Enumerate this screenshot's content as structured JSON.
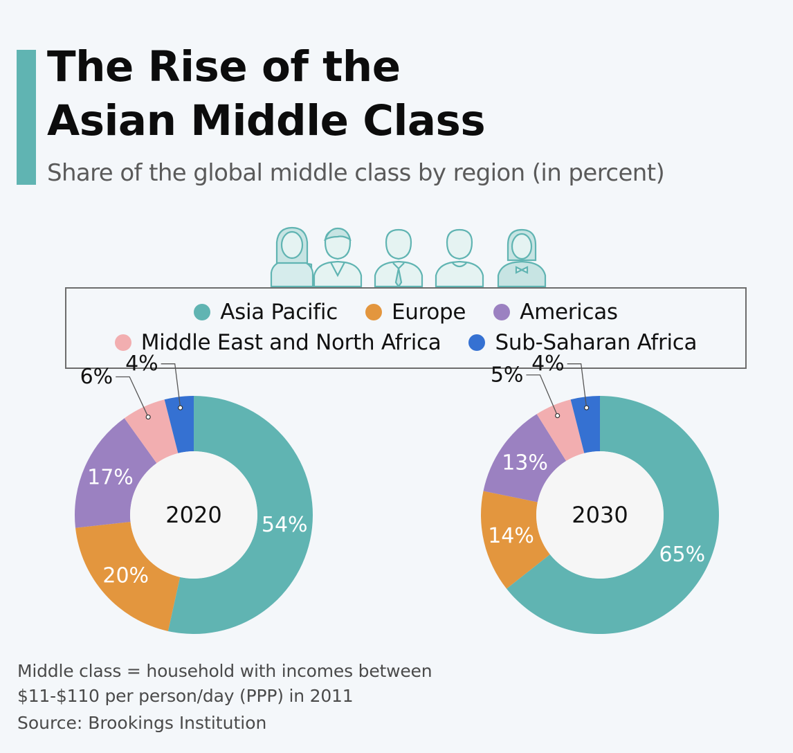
{
  "header": {
    "title_line1": "The Rise of the",
    "title_line2": "Asian Middle Class",
    "subtitle": "Share of the global middle class by region (in percent)"
  },
  "legend": {
    "items": [
      {
        "label": "Asia Pacific",
        "color": "#60b4b2"
      },
      {
        "label": "Europe",
        "color": "#e3963e"
      },
      {
        "label": "Americas",
        "color": "#9b81c1"
      },
      {
        "label": "Middle East and North Africa",
        "color": "#f2aeb0"
      },
      {
        "label": "Sub-Saharan Africa",
        "color": "#3571d2"
      }
    ]
  },
  "footer": {
    "note_line1": "Middle class = household with incomes between",
    "note_line2": "$11-$110 per person/day (PPP) in 2011",
    "source": "Source: Brookings Institution"
  },
  "chart_data": [
    {
      "type": "pie",
      "center_label": "2020",
      "categories": [
        "Asia Pacific",
        "Europe",
        "Americas",
        "Middle East and North Africa",
        "Sub-Saharan Africa"
      ],
      "values": [
        54,
        20,
        17,
        6,
        4
      ],
      "labels": [
        "54%",
        "20%",
        "17%",
        "6%",
        "4%"
      ],
      "colors": [
        "#60b4b2",
        "#e3963e",
        "#9b81c1",
        "#f2aeb0",
        "#3571d2"
      ]
    },
    {
      "type": "pie",
      "center_label": "2030",
      "categories": [
        "Asia Pacific",
        "Europe",
        "Americas",
        "Middle East and North Africa",
        "Sub-Saharan Africa"
      ],
      "values": [
        65,
        14,
        13,
        5,
        4
      ],
      "labels": [
        "65%",
        "14%",
        "13%",
        "5%",
        "4%"
      ],
      "colors": [
        "#60b4b2",
        "#e3963e",
        "#9b81c1",
        "#f2aeb0",
        "#3571d2"
      ]
    }
  ]
}
